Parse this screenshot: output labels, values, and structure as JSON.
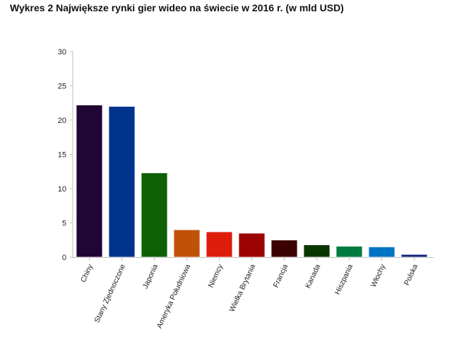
{
  "chart_data": {
    "type": "bar",
    "title": "Wykres 2 Największe rynki gier wideo na świecie w 2016 r. (w mld USD)",
    "xlabel": "",
    "ylabel": "",
    "ylim": [
      0,
      30
    ],
    "yticks": [
      0,
      5,
      10,
      15,
      20,
      25,
      30
    ],
    "grid": false,
    "legend": "none",
    "categories": [
      "Chiny",
      "Stany Zjednoczone",
      "Japonia",
      "Ameryka Południowa",
      "Niemcy",
      "Wielka Brytania",
      "Francja",
      "Kanada",
      "Hiszpania",
      "Włochy",
      "Polska"
    ],
    "values": [
      22.2,
      22.0,
      12.3,
      4.0,
      3.7,
      3.5,
      2.5,
      1.8,
      1.6,
      1.5,
      0.4
    ],
    "colors": [
      "#200535",
      "#00338c",
      "#0e6006",
      "#c05208",
      "#dc1e0b",
      "#9c0404",
      "#3c0202",
      "#0a3602",
      "#007c40",
      "#0075c4",
      "#13247c"
    ]
  }
}
